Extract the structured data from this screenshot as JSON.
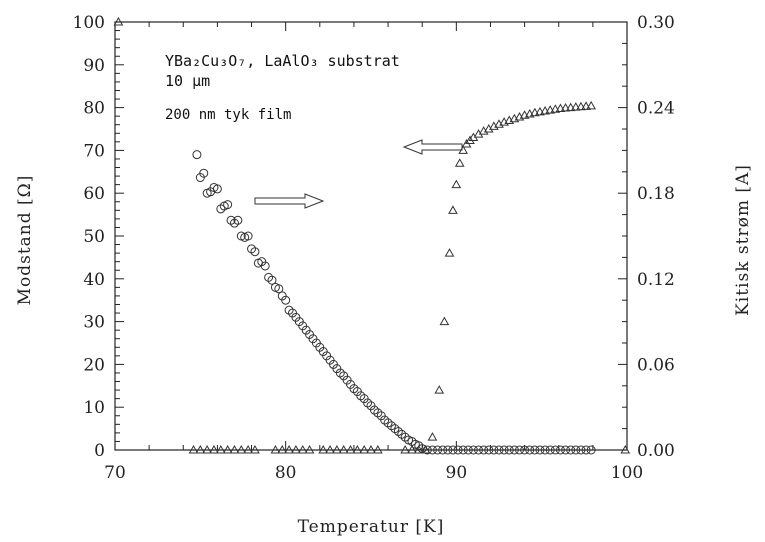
{
  "chart_data": {
    "type": "scatter",
    "xlabel": "Temperatur [K]",
    "ylabel_left": "Modstand [Ω]",
    "ylabel_right": "Kitisk strøm [A]",
    "xlim": [
      70,
      100
    ],
    "ylim_left": [
      0,
      100
    ],
    "ylim_right": [
      0,
      0.3
    ],
    "x_ticks": [
      "70",
      "80",
      "90",
      "100"
    ],
    "y_ticks_left": [
      "0",
      "10",
      "20",
      "30",
      "40",
      "50",
      "60",
      "70",
      "80",
      "90",
      "100"
    ],
    "y_ticks_right": [
      "0.00",
      "0.06",
      "0.12",
      "0.18",
      "0.24",
      "0.30"
    ],
    "grid": false,
    "annotations": {
      "line1": "YBa₂Cu₃O₇, LaAlO₃ substrat",
      "line2": "10 μm",
      "line3": "200 nm tyk film"
    },
    "series": [
      {
        "marker": "triangle",
        "axis": "left",
        "x": [
          70.2,
          74.6,
          75.0,
          75.4,
          75.8,
          76.2,
          76.6,
          77.0,
          77.4,
          77.8,
          78.2,
          79.4,
          79.8,
          80.2,
          80.6,
          81.0,
          81.4,
          82.2,
          82.6,
          83.0,
          83.4,
          83.8,
          84.2,
          84.6,
          85.0,
          85.4,
          87.0,
          87.4,
          87.8,
          88.2,
          88.6,
          89.0,
          89.3,
          89.6,
          89.8,
          90.0,
          90.2,
          90.4,
          90.6,
          90.8,
          91.0,
          91.3,
          91.6,
          91.9,
          92.2,
          92.5,
          92.8,
          93.1,
          93.4,
          93.7,
          94.0,
          94.3,
          94.6,
          94.9,
          95.2,
          95.5,
          95.8,
          96.1,
          96.4,
          96.7,
          97.0,
          97.3,
          97.6,
          97.9,
          99.9
        ],
        "y": [
          100,
          0,
          0,
          0,
          0,
          0,
          0,
          0,
          0,
          0,
          0,
          0,
          0,
          0,
          0,
          0,
          0,
          0,
          0,
          0,
          0,
          0,
          0,
          0,
          0,
          0,
          0,
          0,
          0,
          0,
          3,
          14,
          30,
          46,
          56,
          62,
          67,
          70,
          71.5,
          72.3,
          73.0,
          73.8,
          74.5,
          75.0,
          75.6,
          76.1,
          76.6,
          77.0,
          77.4,
          77.8,
          78.2,
          78.5,
          78.8,
          79.0,
          79.2,
          79.4,
          79.6,
          79.8,
          79.9,
          80.0,
          80.1,
          80.2,
          80.3,
          80.4,
          0
        ]
      },
      {
        "marker": "circle",
        "axis": "right",
        "x": [
          74.8,
          75.0,
          75.2,
          75.4,
          75.6,
          75.8,
          76.0,
          76.2,
          76.4,
          76.6,
          76.8,
          77.0,
          77.2,
          77.4,
          77.6,
          77.8,
          78.0,
          78.2,
          78.4,
          78.6,
          78.8,
          79.0,
          79.2,
          79.4,
          79.6,
          79.8,
          80.0,
          80.2,
          80.4,
          80.6,
          80.8,
          81.0,
          81.2,
          81.4,
          81.6,
          81.8,
          82.0,
          82.2,
          82.4,
          82.6,
          82.8,
          83.0,
          83.2,
          83.4,
          83.6,
          83.8,
          84.0,
          84.2,
          84.4,
          84.6,
          84.8,
          85.0,
          85.2,
          85.4,
          85.6,
          85.8,
          86.0,
          86.2,
          86.4,
          86.6,
          86.8,
          87.0,
          87.2,
          87.4,
          87.6,
          87.8,
          88.0,
          88.3,
          88.6,
          88.9,
          89.2,
          89.5,
          89.8,
          90.1,
          90.4,
          90.7,
          91.0,
          91.3,
          91.6,
          91.9,
          92.2,
          92.5,
          92.8,
          93.1,
          93.4,
          93.7,
          94.0,
          94.3,
          94.6,
          94.9,
          95.2,
          95.5,
          95.8,
          96.1,
          96.4,
          96.7,
          97.0,
          97.3,
          97.6,
          97.9
        ],
        "y": [
          0.207,
          0.191,
          0.194,
          0.18,
          0.181,
          0.184,
          0.183,
          0.169,
          0.171,
          0.172,
          0.161,
          0.159,
          0.161,
          0.15,
          0.149,
          0.15,
          0.141,
          0.139,
          0.131,
          0.132,
          0.129,
          0.121,
          0.119,
          0.114,
          0.113,
          0.108,
          0.105,
          0.098,
          0.096,
          0.093,
          0.09,
          0.087,
          0.084,
          0.081,
          0.078,
          0.075,
          0.072,
          0.069,
          0.066,
          0.063,
          0.06,
          0.057,
          0.054,
          0.052,
          0.049,
          0.046,
          0.043,
          0.041,
          0.038,
          0.036,
          0.033,
          0.031,
          0.028,
          0.026,
          0.024,
          0.021,
          0.019,
          0.017,
          0.015,
          0.013,
          0.011,
          0.009,
          0.007,
          0.006,
          0.004,
          0.003,
          0.001,
          0.0,
          0.0,
          0.0,
          0.0,
          0.0,
          0.0,
          0.0,
          0.0,
          0.0,
          0.0,
          0.0,
          0.0,
          0.0,
          0.0,
          0.0,
          0.0,
          0.0,
          0.0,
          0.0,
          0.0,
          0.0,
          0.0,
          0.0,
          0.0,
          0.0,
          0.0,
          0.0,
          0.0,
          0.0,
          0.0,
          0.0,
          0.0,
          0.0
        ]
      }
    ]
  }
}
